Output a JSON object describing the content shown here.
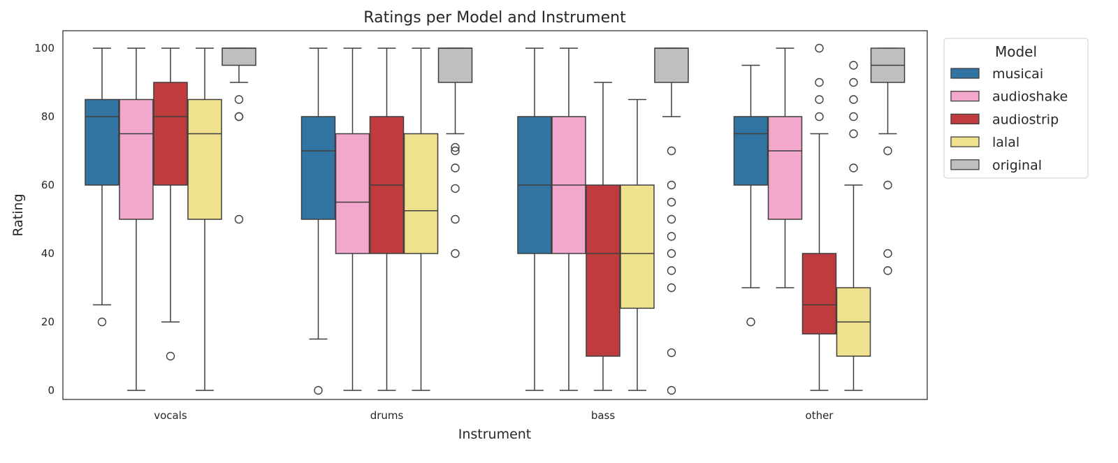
{
  "chart_data": {
    "type": "boxplot",
    "title": "Ratings per Model and Instrument",
    "xlabel": "Instrument",
    "ylabel": "Rating",
    "ylim": [
      -2.5,
      105
    ],
    "yticks": [
      0,
      20,
      40,
      60,
      80,
      100
    ],
    "grid": false,
    "legend": {
      "title": "Model",
      "placement": "outside-top-right"
    },
    "categories": [
      "vocals",
      "drums",
      "bass",
      "other"
    ],
    "series": [
      {
        "name": "musicai",
        "color": "#3274a1",
        "boxes": [
          {
            "whislo": 25,
            "q1": 60,
            "med": 80,
            "q3": 85,
            "whishi": 100,
            "fliers": [
              20
            ]
          },
          {
            "whislo": 15,
            "q1": 50,
            "med": 70,
            "q3": 80,
            "whishi": 100,
            "fliers": [
              0
            ]
          },
          {
            "whislo": 0,
            "q1": 40,
            "med": 60,
            "q3": 80,
            "whishi": 100,
            "fliers": []
          },
          {
            "whislo": 30,
            "q1": 60,
            "med": 75,
            "q3": 80,
            "whishi": 95,
            "fliers": [
              20
            ]
          }
        ]
      },
      {
        "name": "audioshake",
        "color": "#f2a7cc",
        "boxes": [
          {
            "whislo": 0,
            "q1": 50,
            "med": 75,
            "q3": 85,
            "whishi": 100,
            "fliers": []
          },
          {
            "whislo": 0,
            "q1": 40,
            "med": 55,
            "q3": 75,
            "whishi": 100,
            "fliers": []
          },
          {
            "whislo": 0,
            "q1": 40,
            "med": 60,
            "q3": 80,
            "whishi": 100,
            "fliers": []
          },
          {
            "whislo": 30,
            "q1": 50,
            "med": 70,
            "q3": 80,
            "whishi": 100,
            "fliers": []
          }
        ]
      },
      {
        "name": "audiostrip",
        "color": "#c03b3e",
        "boxes": [
          {
            "whislo": 20,
            "q1": 60,
            "med": 80,
            "q3": 90,
            "whishi": 100,
            "fliers": [
              10
            ]
          },
          {
            "whislo": 0,
            "q1": 40,
            "med": 60,
            "q3": 80,
            "whishi": 100,
            "fliers": []
          },
          {
            "whislo": 0,
            "q1": 10,
            "med": 40,
            "q3": 60,
            "whishi": 90,
            "fliers": []
          },
          {
            "whislo": 0,
            "q1": 16.5,
            "med": 25,
            "q3": 40,
            "whishi": 75,
            "fliers": [
              100,
              90,
              85,
              80
            ]
          }
        ]
      },
      {
        "name": "lalal",
        "color": "#f0e18f",
        "boxes": [
          {
            "whislo": 0,
            "q1": 50,
            "med": 75,
            "q3": 85,
            "whishi": 100,
            "fliers": []
          },
          {
            "whislo": 0,
            "q1": 40,
            "med": 52.5,
            "q3": 75,
            "whishi": 100,
            "fliers": []
          },
          {
            "whislo": 0,
            "q1": 24,
            "med": 40,
            "q3": 60,
            "whishi": 85,
            "fliers": []
          },
          {
            "whislo": 0,
            "q1": 10,
            "med": 20,
            "q3": 30,
            "whishi": 60,
            "fliers": [
              95,
              90,
              85,
              80,
              75,
              65
            ]
          }
        ]
      },
      {
        "name": "original",
        "color": "#bfbfbf",
        "boxes": [
          {
            "whislo": 90,
            "q1": 95,
            "med": 100,
            "q3": 100,
            "whishi": 100,
            "fliers": [
              85,
              80,
              80,
              50
            ]
          },
          {
            "whislo": 75,
            "q1": 90,
            "med": 100,
            "q3": 100,
            "whishi": 100,
            "fliers": [
              71,
              70,
              65,
              59,
              50,
              40
            ]
          },
          {
            "whislo": 80,
            "q1": 90,
            "med": 100,
            "q3": 100,
            "whishi": 100,
            "fliers": [
              70,
              60,
              55,
              50,
              45,
              40,
              35,
              30,
              11,
              0
            ]
          },
          {
            "whislo": 75,
            "q1": 90,
            "med": 95,
            "q3": 100,
            "whishi": 100,
            "fliers": [
              70,
              60,
              40,
              35
            ]
          }
        ]
      }
    ]
  }
}
